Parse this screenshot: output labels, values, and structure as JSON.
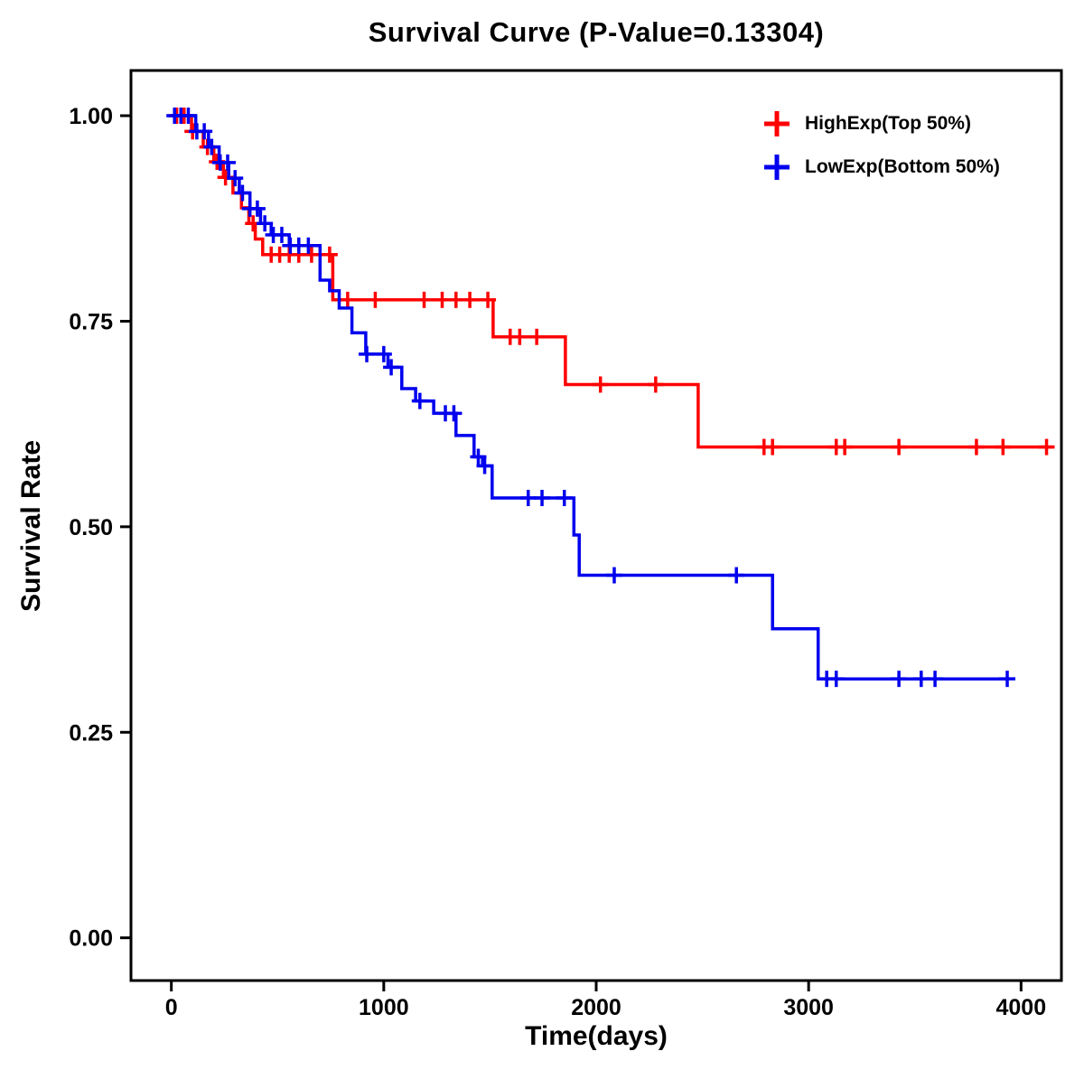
{
  "chart_data": {
    "type": "line",
    "subtype": "kaplan-meier-step-survival",
    "title": "Survival Curve (P-Value=0.13304)",
    "xlabel": "Time(days)",
    "ylabel": "Survival Rate",
    "xlim": [
      -190,
      4190
    ],
    "ylim": [
      -0.052,
      1.055
    ],
    "grid": false,
    "legend_position": "top-right-inside",
    "xticks": [
      {
        "v": 0,
        "label": "0"
      },
      {
        "v": 1000,
        "label": "1000"
      },
      {
        "v": 2000,
        "label": "2000"
      },
      {
        "v": 3000,
        "label": "3000"
      },
      {
        "v": 4000,
        "label": "4000"
      }
    ],
    "yticks": [
      {
        "v": 0.0,
        "label": "0.00"
      },
      {
        "v": 0.25,
        "label": "0.25"
      },
      {
        "v": 0.5,
        "label": "0.50"
      },
      {
        "v": 0.75,
        "label": "0.75"
      },
      {
        "v": 1.0,
        "label": "1.00"
      }
    ],
    "series": [
      {
        "name": "HighExp(Top 50%)",
        "color": "#FF0000",
        "steps": [
          [
            0,
            1.0
          ],
          [
            95,
            0.981
          ],
          [
            150,
            0.962
          ],
          [
            200,
            0.944
          ],
          [
            245,
            0.925
          ],
          [
            290,
            0.906
          ],
          [
            330,
            0.888
          ],
          [
            365,
            0.869
          ],
          [
            395,
            0.85
          ],
          [
            430,
            0.831
          ],
          [
            760,
            0.776
          ],
          [
            1515,
            0.731
          ],
          [
            1855,
            0.673
          ],
          [
            2480,
            0.597
          ],
          [
            4150,
            0.597
          ]
        ],
        "censors": [
          25,
          60,
          100,
          170,
          215,
          255,
          385,
          470,
          510,
          555,
          600,
          660,
          745,
          830,
          960,
          1190,
          1275,
          1340,
          1405,
          1490,
          1595,
          1640,
          1720,
          2020,
          2280,
          2790,
          2830,
          3130,
          3170,
          3425,
          3790,
          3915,
          4120
        ]
      },
      {
        "name": "LowExp(Bottom 50%)",
        "color": "#0000EE",
        "steps": [
          [
            0,
            1.0
          ],
          [
            115,
            0.981
          ],
          [
            175,
            0.962
          ],
          [
            225,
            0.943
          ],
          [
            270,
            0.924
          ],
          [
            320,
            0.906
          ],
          [
            370,
            0.887
          ],
          [
            420,
            0.869
          ],
          [
            470,
            0.855
          ],
          [
            555,
            0.842
          ],
          [
            700,
            0.8
          ],
          [
            745,
            0.787
          ],
          [
            790,
            0.766
          ],
          [
            850,
            0.736
          ],
          [
            915,
            0.71
          ],
          [
            1020,
            0.694
          ],
          [
            1085,
            0.668
          ],
          [
            1150,
            0.653
          ],
          [
            1235,
            0.638
          ],
          [
            1340,
            0.611
          ],
          [
            1425,
            0.585
          ],
          [
            1465,
            0.574
          ],
          [
            1510,
            0.535
          ],
          [
            1895,
            0.49
          ],
          [
            1920,
            0.441
          ],
          [
            2830,
            0.376
          ],
          [
            3045,
            0.315
          ],
          [
            3935,
            0.315
          ]
        ],
        "censors": [
          15,
          45,
          80,
          120,
          155,
          190,
          230,
          265,
          300,
          335,
          370,
          405,
          440,
          480,
          520,
          560,
          600,
          645,
          920,
          1000,
          1035,
          1170,
          1290,
          1330,
          1445,
          1475,
          1680,
          1745,
          1850,
          2085,
          2660,
          3085,
          3130,
          3425,
          3530,
          3595,
          3935
        ]
      }
    ]
  }
}
